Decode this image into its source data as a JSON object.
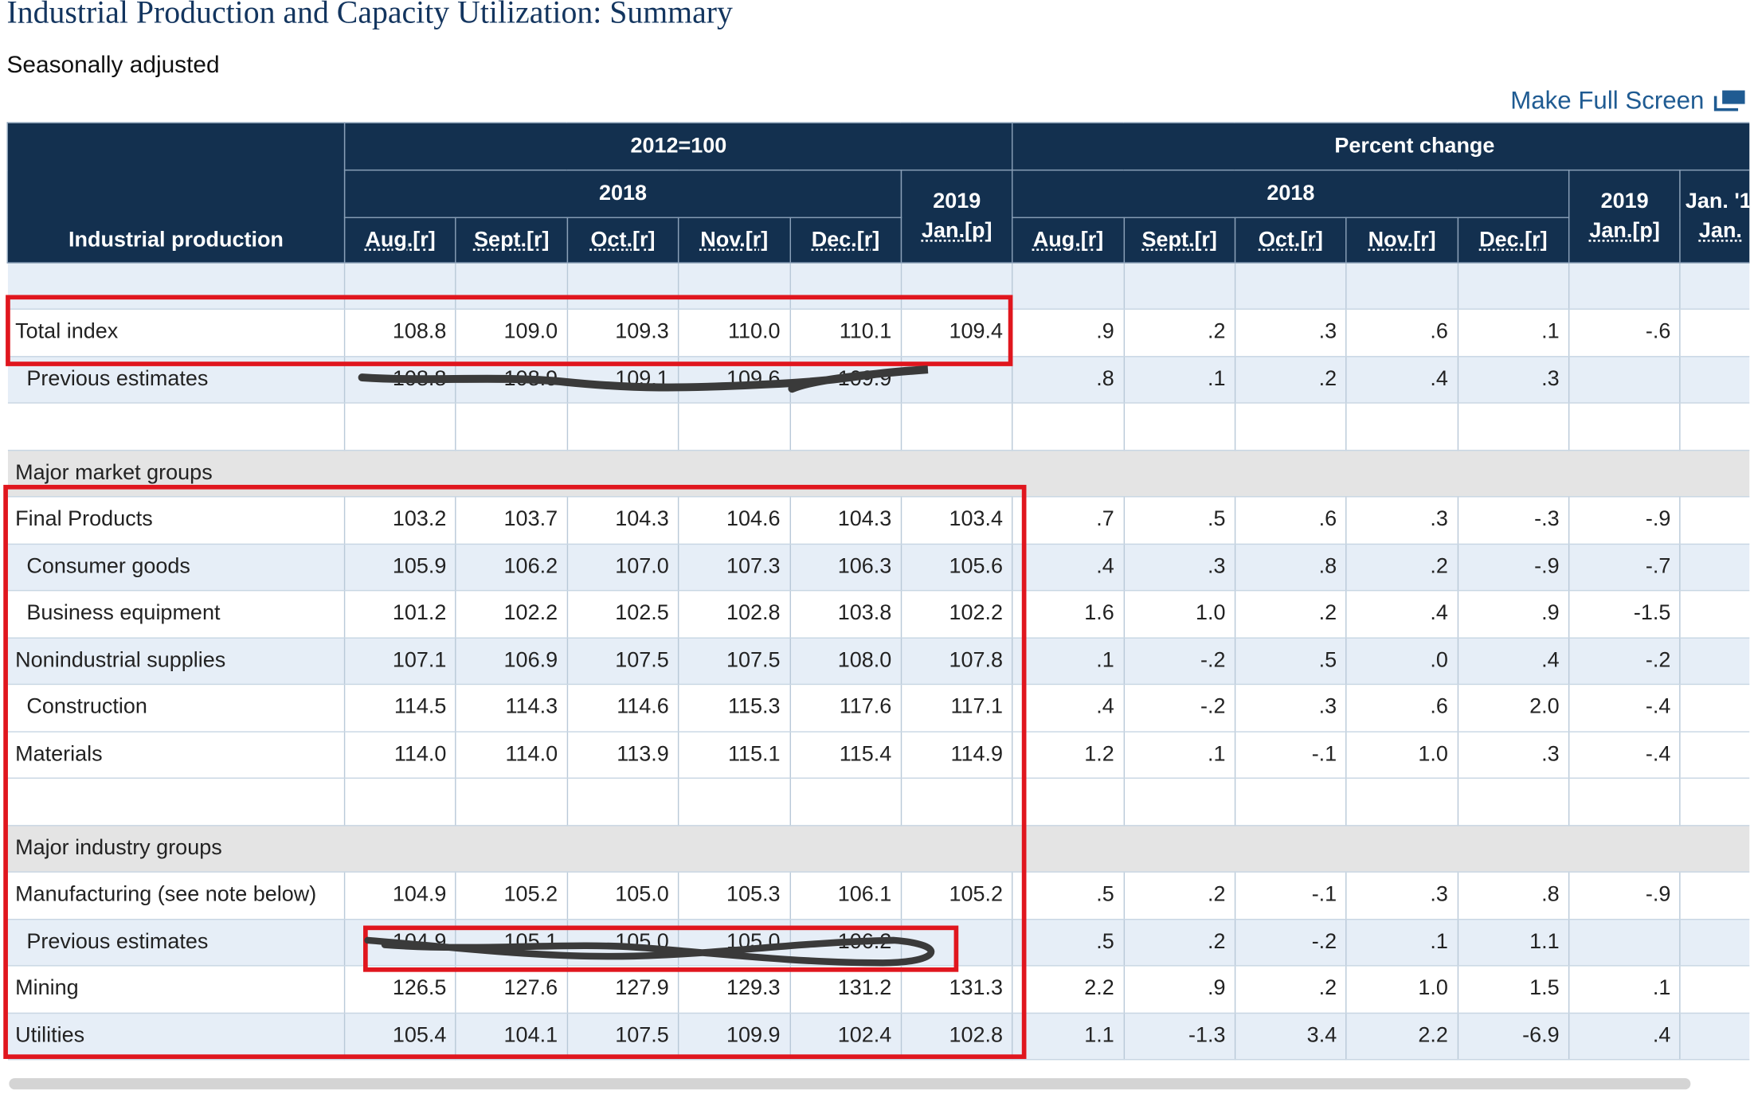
{
  "title": "Industrial Production and Capacity Utilization: Summary",
  "subtitle": "Seasonally adjusted",
  "full_screen_label": "Make Full Screen",
  "header": {
    "row_header": "Industrial production",
    "group1": "2012=100",
    "group2": "Percent change",
    "year2018": "2018",
    "year2019": "2019",
    "jan_partial": "Jan. '1",
    "jan_partial_sub": "Jan.",
    "months": [
      "Aug.[r]",
      "Sept.[r]",
      "Oct.[r]",
      "Nov.[r]",
      "Dec.[r]"
    ],
    "jan": "Jan.[p]"
  },
  "rows": [
    {
      "label": "Total index",
      "idx": [
        "108.8",
        "109.0",
        "109.3",
        "110.0",
        "110.1",
        "109.4"
      ],
      "pct": [
        ".9",
        ".2",
        ".3",
        ".6",
        ".1",
        "-.6"
      ]
    },
    {
      "label": "Previous estimates",
      "idx": [
        "108.8",
        "108.9",
        "109.1",
        "109.6",
        "109.9",
        ""
      ],
      "pct": [
        ".8",
        ".1",
        ".2",
        ".4",
        ".3",
        ""
      ]
    },
    {
      "label": "Major market groups"
    },
    {
      "label": "Final Products",
      "idx": [
        "103.2",
        "103.7",
        "104.3",
        "104.6",
        "104.3",
        "103.4"
      ],
      "pct": [
        ".7",
        ".5",
        ".6",
        ".3",
        "-.3",
        "-.9"
      ]
    },
    {
      "label": "Consumer goods",
      "idx": [
        "105.9",
        "106.2",
        "107.0",
        "107.3",
        "106.3",
        "105.6"
      ],
      "pct": [
        ".4",
        ".3",
        ".8",
        ".2",
        "-.9",
        "-.7"
      ]
    },
    {
      "label": "Business equipment",
      "idx": [
        "101.2",
        "102.2",
        "102.5",
        "102.8",
        "103.8",
        "102.2"
      ],
      "pct": [
        "1.6",
        "1.0",
        ".2",
        ".4",
        ".9",
        "-1.5"
      ]
    },
    {
      "label": "Nonindustrial supplies",
      "idx": [
        "107.1",
        "106.9",
        "107.5",
        "107.5",
        "108.0",
        "107.8"
      ],
      "pct": [
        ".1",
        "-.2",
        ".5",
        ".0",
        ".4",
        "-.2"
      ]
    },
    {
      "label": "Construction",
      "idx": [
        "114.5",
        "114.3",
        "114.6",
        "115.3",
        "117.6",
        "117.1"
      ],
      "pct": [
        ".4",
        "-.2",
        ".3",
        ".6",
        "2.0",
        "-.4"
      ]
    },
    {
      "label": "Materials",
      "idx": [
        "114.0",
        "114.0",
        "113.9",
        "115.1",
        "115.4",
        "114.9"
      ],
      "pct": [
        "1.2",
        ".1",
        "-.1",
        "1.0",
        ".3",
        "-.4"
      ]
    },
    {
      "label": "Major industry groups"
    },
    {
      "label": "Manufacturing (see note below)",
      "idx": [
        "104.9",
        "105.2",
        "105.0",
        "105.3",
        "106.1",
        "105.2"
      ],
      "pct": [
        ".5",
        ".2",
        "-.1",
        ".3",
        ".8",
        "-.9"
      ]
    },
    {
      "label": "Previous estimates",
      "idx": [
        "104.9",
        "105.1",
        "105.0",
        "105.0",
        "106.2",
        ""
      ],
      "pct": [
        ".5",
        ".2",
        "-.2",
        ".1",
        "1.1",
        ""
      ]
    },
    {
      "label": "Mining",
      "idx": [
        "126.5",
        "127.6",
        "127.9",
        "129.3",
        "131.2",
        "131.3"
      ],
      "pct": [
        "2.2",
        ".9",
        ".2",
        "1.0",
        "1.5",
        ".1"
      ]
    },
    {
      "label": "Utilities",
      "idx": [
        "105.4",
        "104.1",
        "107.5",
        "109.9",
        "102.4",
        "102.8"
      ],
      "pct": [
        "1.1",
        "-1.3",
        "3.4",
        "2.2",
        "-6.9",
        ".4"
      ]
    }
  ],
  "colors": {
    "header_bg": "#13304f",
    "row_alt": "#e6eef7",
    "section_bg": "#e4e4e4",
    "highlight": "#e0161e",
    "link": "#1f5b92"
  }
}
